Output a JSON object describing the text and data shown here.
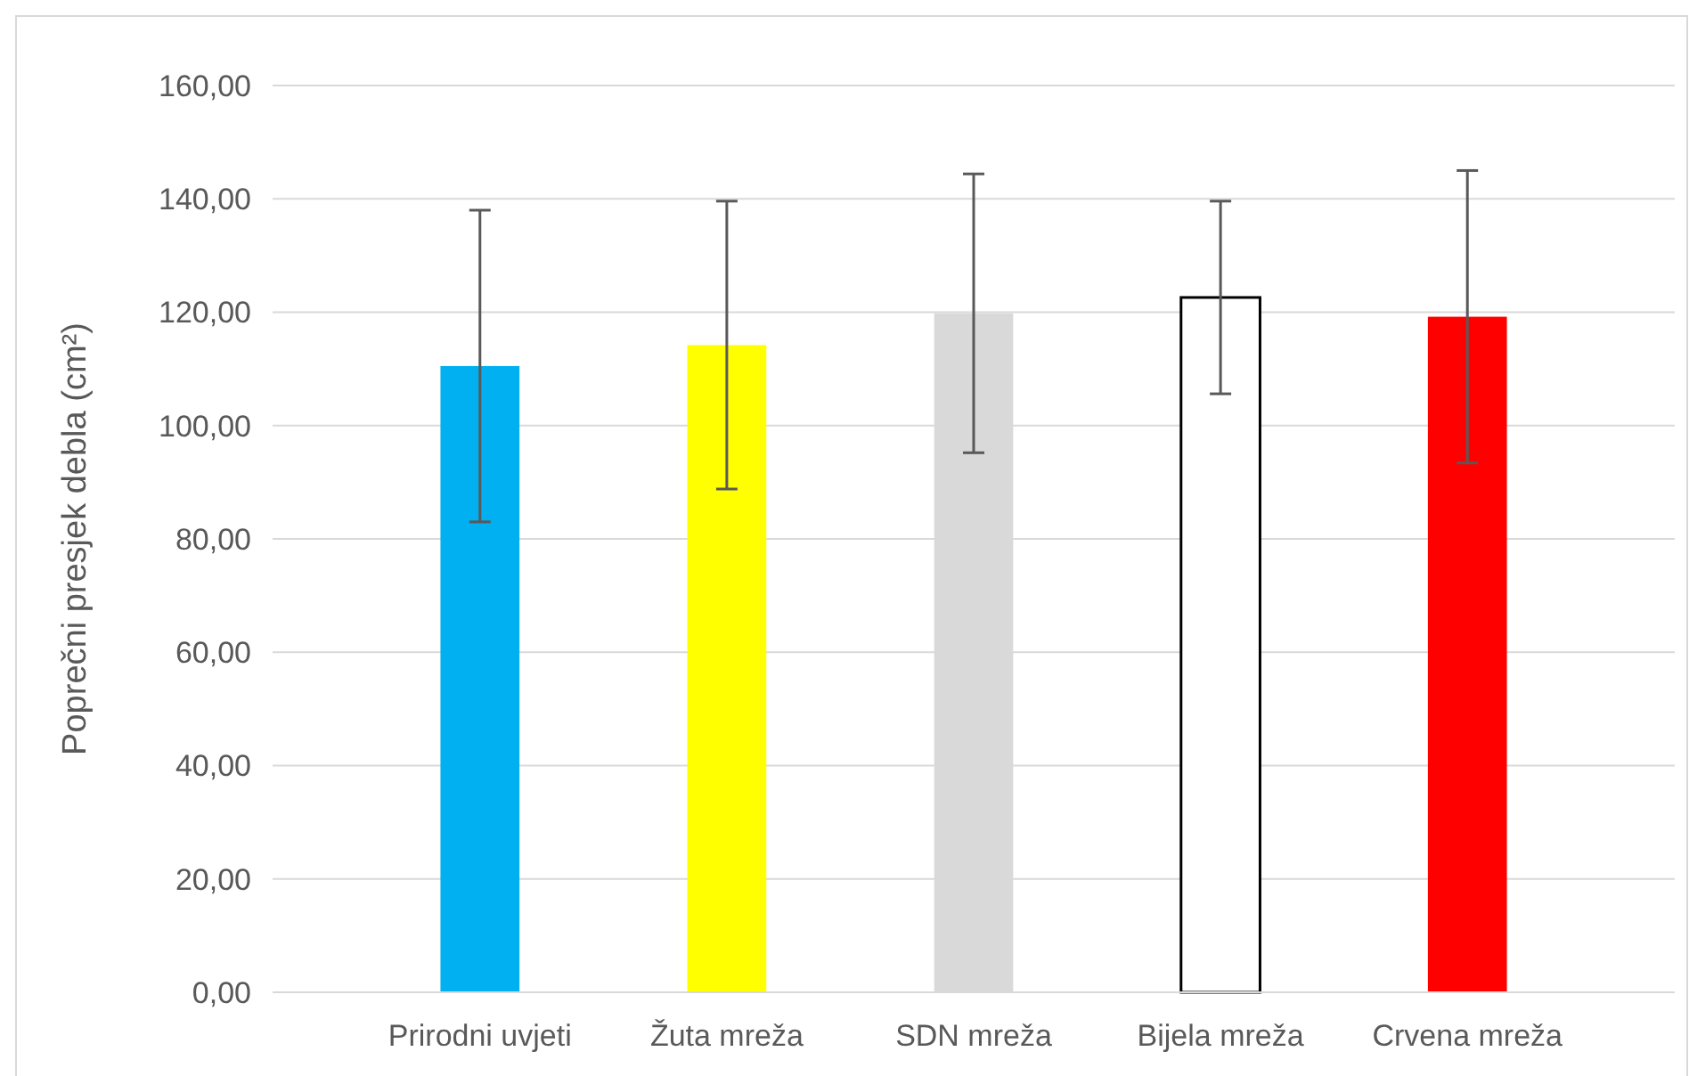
{
  "chart_data": {
    "type": "bar",
    "ylabel": "Poprečni presjek debla (cm²)",
    "categories": [
      "Prirodni uvjeti",
      "Žuta mreža",
      "SDN mreža",
      "Bijela mreža",
      "Crvena mreža"
    ],
    "values": [
      110.5,
      114.2,
      119.8,
      122.6,
      119.2
    ],
    "colors": [
      "#00b0f0",
      "#ffff00",
      "#d9d9d9",
      "#ffffff",
      "#ff0000"
    ],
    "errors": [
      27.5,
      25.4,
      24.6,
      17,
      25.8
    ],
    "ylim": [
      0,
      160
    ],
    "yticks": [
      {
        "value": 0,
        "label": "0,00"
      },
      {
        "value": 20,
        "label": "20,00"
      },
      {
        "value": 40,
        "label": "40,00"
      },
      {
        "value": 60,
        "label": "60,00"
      },
      {
        "value": 80,
        "label": "80,00"
      },
      {
        "value": 100,
        "label": "100,00"
      },
      {
        "value": 120,
        "label": "120,00"
      },
      {
        "value": 140,
        "label": "140,00"
      },
      {
        "value": 160,
        "label": "160,00"
      }
    ],
    "grid": "y"
  }
}
